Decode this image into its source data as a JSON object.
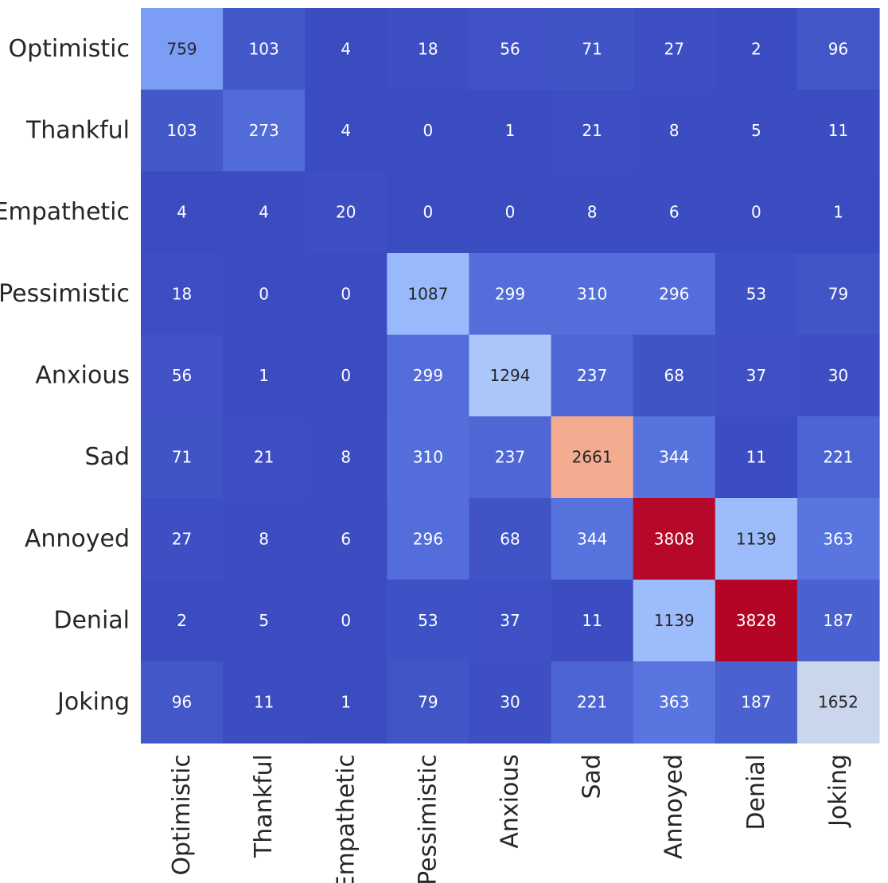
{
  "chart_data": {
    "type": "heatmap",
    "title": "",
    "xlabel": "",
    "ylabel": "",
    "colormap": "coolwarm",
    "value_range": [
      0,
      3828
    ],
    "row_labels": [
      "Optimistic",
      "Thankful",
      "Empathetic",
      "Pessimistic",
      "Anxious",
      "Sad",
      "Annoyed",
      "Denial",
      "Joking"
    ],
    "col_labels": [
      "Optimistic",
      "Thankful",
      "Empathetic",
      "Pessimistic",
      "Anxious",
      "Sad",
      "Annoyed",
      "Denial",
      "Joking"
    ],
    "matrix": [
      [
        759,
        103,
        4,
        18,
        56,
        71,
        27,
        2,
        96
      ],
      [
        103,
        273,
        4,
        0,
        1,
        21,
        8,
        5,
        11
      ],
      [
        4,
        4,
        20,
        0,
        0,
        8,
        6,
        0,
        1
      ],
      [
        18,
        0,
        0,
        1087,
        299,
        310,
        296,
        53,
        79
      ],
      [
        56,
        1,
        0,
        299,
        1294,
        237,
        68,
        37,
        30
      ],
      [
        71,
        21,
        8,
        310,
        237,
        2661,
        344,
        11,
        221
      ],
      [
        27,
        8,
        6,
        296,
        68,
        344,
        3808,
        1139,
        363
      ],
      [
        2,
        5,
        0,
        53,
        37,
        11,
        1139,
        3828,
        187
      ],
      [
        96,
        11,
        1,
        79,
        30,
        221,
        363,
        187,
        1652
      ]
    ]
  }
}
